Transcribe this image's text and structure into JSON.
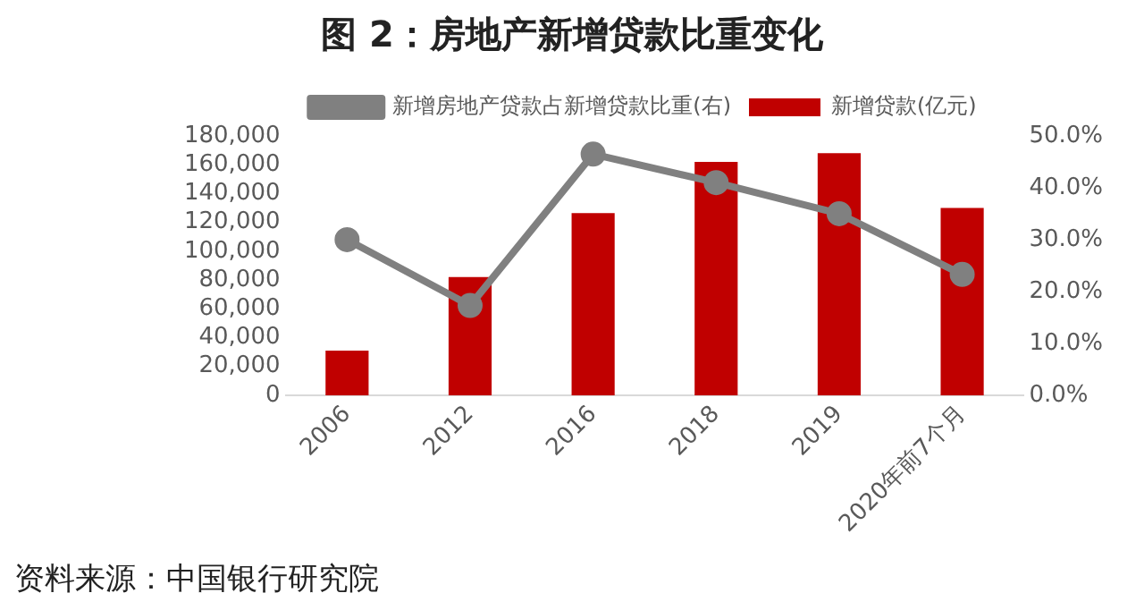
{
  "chart_data": {
    "type": "bar",
    "title": "图 2：房地产新增贷款比重变化",
    "categories": [
      "2006",
      "2012",
      "2016",
      "2018",
      "2019",
      "2020年前7个月"
    ],
    "series": [
      {
        "name": "新增贷款(亿元)",
        "color": "#c00000",
        "values": [
          31000,
          82000,
          126500,
          162000,
          168000,
          130000
        ]
      },
      {
        "name": "新增房地产贷款占新增贷款比重(右)",
        "type": "line",
        "axis": "y2",
        "color": "#808080",
        "values": [
          30,
          17.3,
          46.5,
          41,
          35,
          23.3
        ]
      }
    ],
    "ylim": [
      0,
      180000
    ],
    "yticks": [
      {
        "value": 0,
        "label": "0"
      },
      {
        "value": 20000,
        "label": "20,000"
      },
      {
        "value": 40000,
        "label": "40,000"
      },
      {
        "value": 60000,
        "label": "60,000"
      },
      {
        "value": 80000,
        "label": "80,000"
      },
      {
        "value": 100000,
        "label": "100,000"
      },
      {
        "value": 120000,
        "label": "120,000"
      },
      {
        "value": 140000,
        "label": "140,000"
      },
      {
        "value": 160000,
        "label": "160,000"
      },
      {
        "value": 180000,
        "label": "180,000"
      }
    ],
    "y2lim": [
      0,
      50
    ],
    "y2ticks": [
      {
        "value": 0,
        "label": "0.0%"
      },
      {
        "value": 10,
        "label": "10.0%"
      },
      {
        "value": 20,
        "label": "20.0%"
      },
      {
        "value": 30,
        "label": "30.0%"
      },
      {
        "value": 40,
        "label": "40.0%"
      },
      {
        "value": 50,
        "label": "50.0%"
      }
    ],
    "grid": false,
    "legend": "top",
    "marker": "circle",
    "annotations": [
      "资料来源：中国银行研究院"
    ]
  }
}
